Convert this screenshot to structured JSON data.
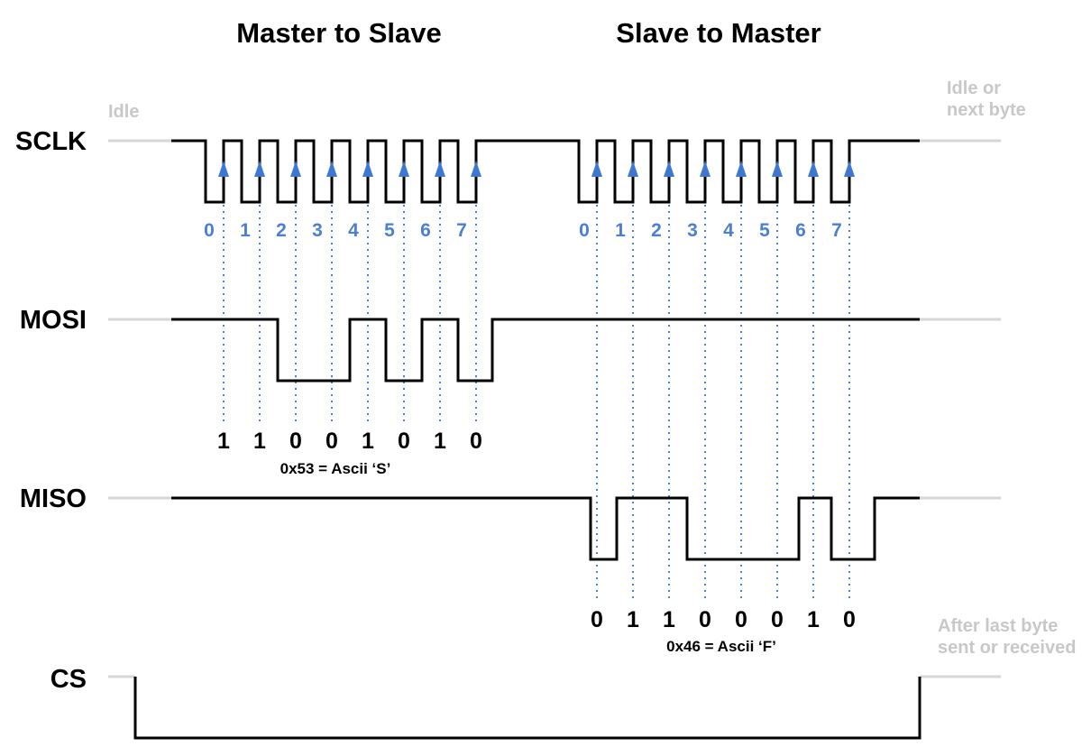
{
  "titles": {
    "left": "Master to Slave",
    "right": "Slave to Master"
  },
  "notes": {
    "idle": "Idle",
    "idle_next_line1": "Idle or",
    "idle_next_line2": "next byte",
    "after_line1": "After last byte",
    "after_line2": "sent or received"
  },
  "signals": {
    "sclk": "SCLK",
    "mosi": "MOSI",
    "miso": "MISO",
    "cs": "CS"
  },
  "bit_indices": {
    "group1": [
      "0",
      "1",
      "2",
      "3",
      "4",
      "5",
      "6",
      "7"
    ],
    "group2": [
      "0",
      "1",
      "2",
      "3",
      "4",
      "5",
      "6",
      "7"
    ]
  },
  "mosi_bits": [
    "1",
    "1",
    "0",
    "0",
    "1",
    "0",
    "1",
    "0"
  ],
  "miso_bits": [
    "0",
    "1",
    "1",
    "0",
    "0",
    "0",
    "1",
    "0"
  ],
  "mosi_caption": "0x53 = Ascii ‘S’",
  "miso_caption": "0x46 = Ascii ‘F’",
  "colors": {
    "signal": "#000000",
    "idle_line": "#d6d6d6",
    "accent_blue": "#4a7fd4",
    "note_gray": "#c8c8c8"
  }
}
